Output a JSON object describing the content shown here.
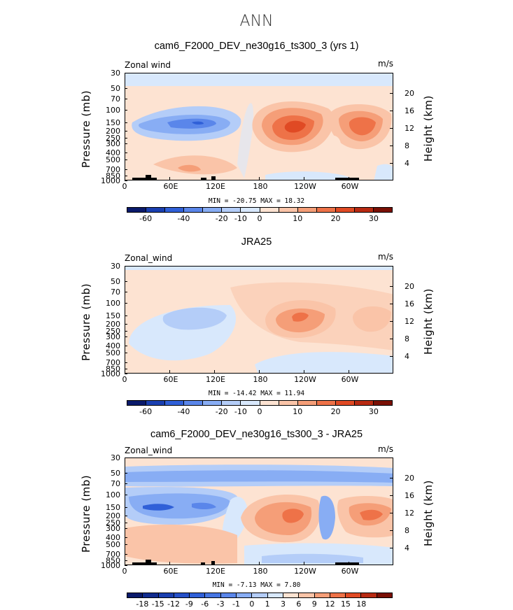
{
  "page_title": "ANN",
  "panels": [
    {
      "title": "cam6_F2000_DEV_ne30g16_ts300_3 (yrs 1)",
      "left_label": "Zonal wind",
      "right_label": "m/s",
      "min_max": "MIN = -20.75   MAX =  18.32",
      "colorbar_labels": [
        "-60",
        "-40",
        "-20",
        "-10",
        "0",
        "10",
        "20",
        "30"
      ],
      "colorbar_colors": [
        "#0a1a6b",
        "#1a3fb0",
        "#3060d8",
        "#5a86ea",
        "#88adf4",
        "#b4cdf8",
        "#d8e8fc",
        "#fde3d2",
        "#fac4a8",
        "#f59e78",
        "#ee7248",
        "#e04a24",
        "#b82a12",
        "#7a1005"
      ]
    },
    {
      "title": "JRA25",
      "left_label": "Zonal_wind",
      "right_label": "m/s",
      "min_max": "MIN = -14.42   MAX =  11.94",
      "colorbar_labels": [
        "-60",
        "-40",
        "-20",
        "-10",
        "0",
        "10",
        "20",
        "30"
      ],
      "colorbar_colors": [
        "#0a1a6b",
        "#1a3fb0",
        "#3060d8",
        "#5a86ea",
        "#88adf4",
        "#b4cdf8",
        "#d8e8fc",
        "#fde3d2",
        "#fac4a8",
        "#f59e78",
        "#ee7248",
        "#e04a24",
        "#b82a12",
        "#7a1005"
      ]
    },
    {
      "title": "cam6_F2000_DEV_ne30g16_ts300_3 - JRA25",
      "left_label": "Zonal_wind",
      "right_label": "m/s",
      "min_max": "MIN =  -7.13   MAX =   7.80",
      "colorbar_labels": [
        "-18",
        "-15",
        "-12",
        "-9",
        "-6",
        "-3",
        "-1",
        "0",
        "1",
        "3",
        "6",
        "9",
        "12",
        "15",
        "18"
      ],
      "colorbar_colors": [
        "#0a1a6b",
        "#112c8f",
        "#1a3fb0",
        "#2550c8",
        "#3060d8",
        "#4575e2",
        "#5a86ea",
        "#88adf4",
        "#b4cdf8",
        "#d8e8fc",
        "#fde3d2",
        "#fac4a8",
        "#f59e78",
        "#ee7248",
        "#e04a24",
        "#b82a12",
        "#7a1005"
      ]
    }
  ],
  "axes": {
    "y_label": "Pressure (mb)",
    "y_ticks": [
      "30",
      "50",
      "70",
      "100",
      "150",
      "200",
      "250",
      "300",
      "400",
      "500",
      "700",
      "850",
      "1000"
    ],
    "right_label": "Height (km)",
    "right_ticks": [
      "20",
      "16",
      "12",
      "8",
      "4"
    ],
    "x_ticks": [
      "0",
      "60E",
      "120E",
      "180",
      "120W",
      "60W"
    ]
  },
  "chart_data": [
    {
      "type": "heatmap",
      "title": "cam6_F2000_DEV_ne30g16_ts300_3 (yrs 1)",
      "variable": "Zonal wind",
      "units": "m/s",
      "xlabel": "",
      "ylabel": "Pressure (mb)",
      "y2label": "Height (km)",
      "ylim": [
        1000,
        30
      ],
      "y_scale": "log",
      "min": -20.75,
      "max": 18.32,
      "contour_levels": [
        -60,
        -50,
        -40,
        -30,
        -20,
        -15,
        -10,
        -5,
        0,
        5,
        10,
        15,
        20,
        25,
        30
      ]
    },
    {
      "type": "heatmap",
      "title": "JRA25",
      "variable": "Zonal_wind",
      "units": "m/s",
      "xlabel": "",
      "ylabel": "Pressure (mb)",
      "y2label": "Height (km)",
      "ylim": [
        1000,
        30
      ],
      "y_scale": "log",
      "min": -14.42,
      "max": 11.94,
      "contour_levels": [
        -60,
        -50,
        -40,
        -30,
        -20,
        -15,
        -10,
        -5,
        0,
        5,
        10,
        15,
        20,
        25,
        30
      ]
    },
    {
      "type": "heatmap",
      "title": "cam6_F2000_DEV_ne30g16_ts300_3 - JRA25",
      "variable": "Zonal_wind",
      "units": "m/s",
      "xlabel": "",
      "ylabel": "Pressure (mb)",
      "y2label": "Height (km)",
      "ylim": [
        1000,
        30
      ],
      "y_scale": "log",
      "min": -7.13,
      "max": 7.8,
      "contour_levels": [
        -18,
        -15,
        -12,
        -9,
        -6,
        -3,
        -1,
        0,
        1,
        3,
        6,
        9,
        12,
        15,
        18
      ]
    }
  ]
}
